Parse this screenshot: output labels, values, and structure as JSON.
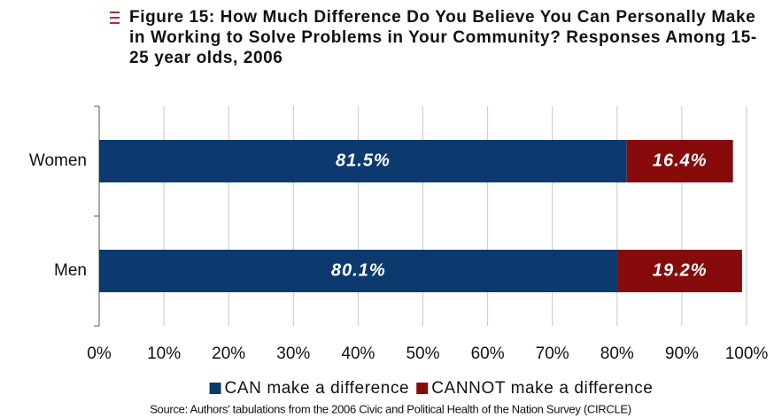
{
  "chart_data": {
    "type": "stacked-bar-horizontal",
    "title": "Figure 15: How Much Difference Do You Believe You Can Personally Make in Working to Solve Problems in Your Community? Responses Among 15-25 year olds, 2006",
    "categories": [
      "Women",
      "Men"
    ],
    "series": [
      {
        "name": "CAN make a difference",
        "color": "#0d3a6e",
        "values": [
          81.5,
          80.1
        ],
        "value_labels": [
          "81.5%",
          "80.1%"
        ]
      },
      {
        "name": "CANNOT make a difference",
        "color": "#870b0b",
        "values": [
          16.4,
          19.2
        ],
        "value_labels": [
          "16.4%",
          "19.2%"
        ]
      }
    ],
    "xlim": [
      0,
      100
    ],
    "xticks": [
      {
        "value": 0,
        "label": "0%"
      },
      {
        "value": 10,
        "label": "10%"
      },
      {
        "value": 20,
        "label": "20%"
      },
      {
        "value": 30,
        "label": "30%"
      },
      {
        "value": 40,
        "label": "40%"
      },
      {
        "value": 50,
        "label": "50%"
      },
      {
        "value": 60,
        "label": "60%"
      },
      {
        "value": 70,
        "label": "70%"
      },
      {
        "value": 80,
        "label": "80%"
      },
      {
        "value": 90,
        "label": "90%"
      },
      {
        "value": 100,
        "label": "100%"
      }
    ],
    "grid": true,
    "legend": "bottom",
    "source": "Source: Authors' tabulations from the 2006 Civic and Political Health of the Nation Survey (CIRCLE)"
  }
}
